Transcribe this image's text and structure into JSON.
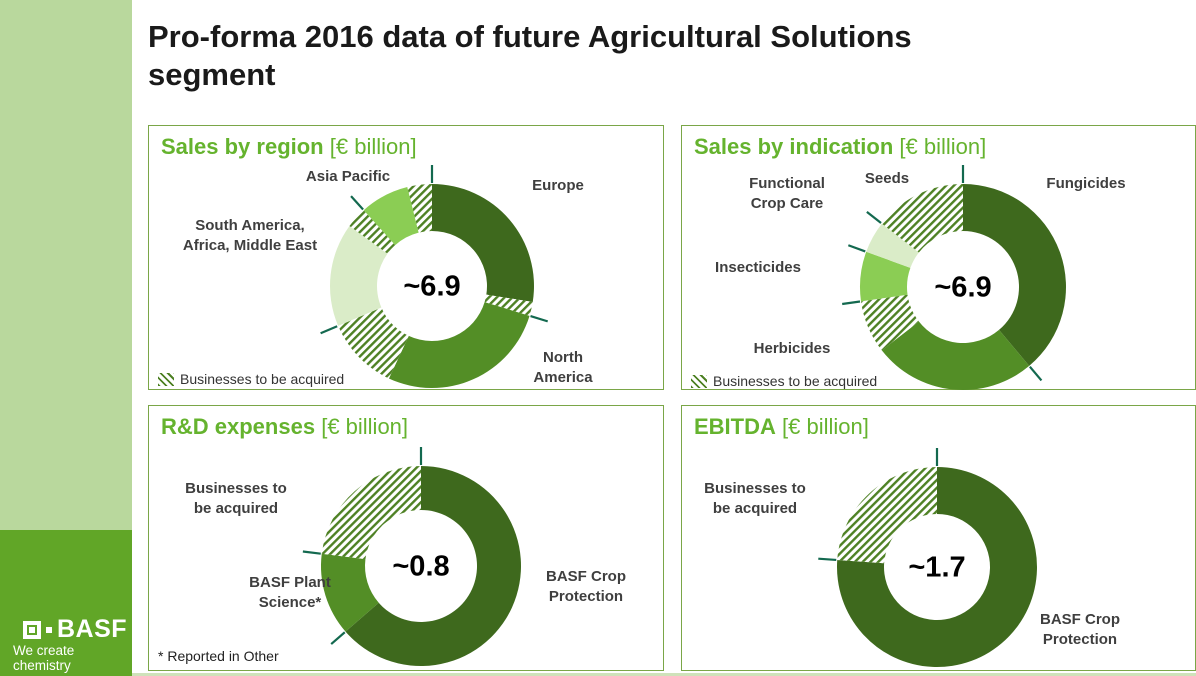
{
  "page": {
    "title_line1": "Pro-forma 2016 data of future Agricultural Solutions",
    "title_line2": "segment"
  },
  "branding": {
    "logo_text": "BASF",
    "tagline": "We create chemistry"
  },
  "colors": {
    "segment_dark": "#3e691d",
    "segment_medium": "#538e26",
    "segment_bright": "#8bcd54",
    "segment_pale": "#daecc8",
    "hatch_stripe": "#4e8124",
    "tick": "#13694f",
    "title_green": "#65b32e",
    "panel_border": "#7aa647",
    "sidebar_light": "#b9d89d",
    "basf_green": "#61a627",
    "label_gray": "#3f3f3f"
  },
  "chart_data": [
    {
      "type": "donut",
      "title": "Sales by region",
      "unit": "[€ billion]",
      "center_value": "~6.9",
      "legend": "Businesses to be acquired",
      "segments": [
        {
          "label": "Europe",
          "style": "dark",
          "sweep_deg": 99
        },
        {
          "label": "Europe (to be acquired)",
          "style": "hatch",
          "sweep_deg": 8
        },
        {
          "label": "North America",
          "style": "medium",
          "sweep_deg": 98
        },
        {
          "label": "North America (to be acquired)",
          "style": "hatch",
          "sweep_deg": 42
        },
        {
          "label": "South America, Africa, Middle East",
          "style": "pale",
          "sweep_deg": 59
        },
        {
          "label": "South America, Africa, Middle East (to be acquired)",
          "style": "hatch",
          "sweep_deg": 12
        },
        {
          "label": "Asia Pacific",
          "style": "bright",
          "sweep_deg": 28
        },
        {
          "label": "Asia Pacific (to be acquired)",
          "style": "hatch",
          "sweep_deg": 14
        }
      ],
      "ticks_deg": [
        0,
        107,
        247,
        318
      ],
      "callouts": [
        {
          "text": "Asia Pacific"
        },
        {
          "text": "Europe"
        },
        {
          "text": "South America,\nAfrica, Middle East"
        },
        {
          "text": "North\nAmerica"
        }
      ]
    },
    {
      "type": "donut",
      "title": "Sales by indication",
      "unit": "[€ billion]",
      "center_value": "~6.9",
      "legend": "Businesses to be acquired",
      "segments": [
        {
          "label": "Fungicides",
          "style": "dark",
          "sweep_deg": 140
        },
        {
          "label": "Herbicides",
          "style": "medium",
          "sweep_deg": 92
        },
        {
          "label": "Herbicides (to be acquired)",
          "style": "hatch",
          "sweep_deg": 30
        },
        {
          "label": "Insecticides",
          "style": "bright",
          "sweep_deg": 28
        },
        {
          "label": "Functional Crop Care",
          "style": "pale",
          "sweep_deg": 18
        },
        {
          "label": "Seeds (to be acquired)",
          "style": "hatch",
          "sweep_deg": 52
        }
      ],
      "ticks_deg": [
        0,
        140,
        262,
        290,
        308
      ],
      "callouts": [
        {
          "text": "Functional\nCrop Care"
        },
        {
          "text": "Seeds"
        },
        {
          "text": "Fungicides"
        },
        {
          "text": "Insecticides"
        },
        {
          "text": "Herbicides"
        }
      ]
    },
    {
      "type": "donut",
      "title": "R&D expenses",
      "unit": "[€ billion]",
      "center_value": "~0.8",
      "footnote": "* Reported in Other",
      "segments": [
        {
          "label": "BASF Crop Protection",
          "style": "dark",
          "sweep_deg": 229
        },
        {
          "label": "BASF Plant Science*",
          "style": "medium",
          "sweep_deg": 48
        },
        {
          "label": "Businesses to be acquired",
          "style": "hatch",
          "sweep_deg": 83
        }
      ],
      "ticks_deg": [
        0,
        229,
        277
      ],
      "callouts": [
        {
          "text": "Businesses to\nbe acquired"
        },
        {
          "text": "BASF Plant\nScience*"
        },
        {
          "text": "BASF Crop\nProtection"
        }
      ]
    },
    {
      "type": "donut",
      "title": "EBITDA",
      "unit": "[€ billion]",
      "center_value": "~1.7",
      "segments": [
        {
          "label": "BASF Crop Protection",
          "style": "dark",
          "sweep_deg": 274
        },
        {
          "label": "Businesses to be acquired",
          "style": "hatch",
          "sweep_deg": 86
        }
      ],
      "ticks_deg": [
        0,
        274
      ],
      "callouts": [
        {
          "text": "Businesses to\nbe acquired"
        },
        {
          "text": "BASF Crop\nProtection"
        }
      ]
    }
  ]
}
